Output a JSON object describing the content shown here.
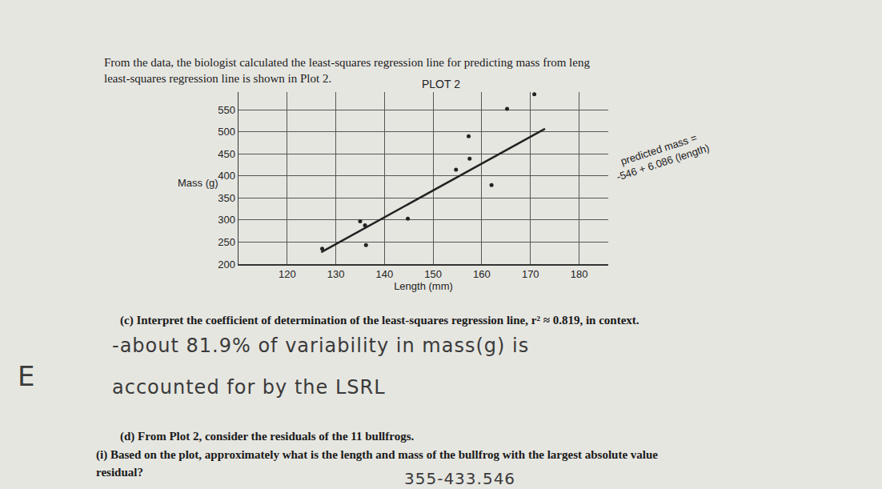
{
  "document": {
    "intro": [
      "From the data, the biologist calculated the least-squares regression line for predicting mass from leng",
      "least-squares regression line is shown in Plot 2."
    ],
    "question_c": "(c) Interpret the coefficient of determination of the least-squares regression line, r² ≈ 0.819, in context.",
    "answer_c": [
      "-about 81.9% of variability in mass(g) is",
      "accounted for by the LSRL"
    ],
    "grade": "E",
    "question_d": "(d) From Plot 2, consider the residuals of the 11 bullfrogs.",
    "question_d_i": [
      "(i) Based on the plot, approximately what is the length and mass of the bullfrog with the largest absolute value",
      "residual?"
    ],
    "answer_d_i": "355-433.546"
  },
  "chart_data": {
    "type": "scatter",
    "title": "PLOT 2",
    "x_label": "Length (mm)",
    "y_label": "Mass (g)",
    "x": [
      127.2,
      135,
      136,
      136.2,
      144.8,
      154.7,
      157.5,
      157.3,
      162,
      165.2,
      170.8
    ],
    "values": [
      235,
      297,
      288,
      243,
      303,
      414,
      439,
      490,
      379,
      552,
      585
    ],
    "color": "#222222",
    "marker": "circle",
    "xlim": [
      110,
      186
    ],
    "ylim": [
      200,
      590
    ],
    "xticks": [
      120,
      130,
      140,
      150,
      160,
      170,
      180
    ],
    "yticks": [
      200,
      250,
      300,
      350,
      400,
      450,
      500,
      550
    ],
    "grid": true,
    "regression": {
      "intercept": -546,
      "slope": 6.086,
      "x": [
        127,
        173
      ]
    },
    "annotation": [
      "predicted mass =",
      "-546 + 6.086 (length)"
    ]
  }
}
